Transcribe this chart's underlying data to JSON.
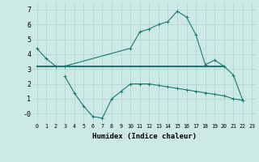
{
  "xlabel": "Humidex (Indice chaleur)",
  "upper_x": [
    0,
    1,
    2,
    3,
    10,
    11,
    12,
    13,
    14,
    15,
    16,
    17,
    18,
    19,
    20,
    21,
    22
  ],
  "upper_y": [
    4.4,
    3.7,
    3.2,
    3.2,
    4.4,
    5.5,
    5.7,
    6.0,
    6.2,
    6.9,
    6.5,
    5.3,
    3.3,
    3.6,
    3.2,
    2.6,
    0.9
  ],
  "lower_x": [
    3,
    4,
    5,
    6,
    7,
    8,
    9,
    10,
    11,
    12,
    13,
    14,
    15,
    16,
    17,
    18,
    19,
    20,
    21,
    22
  ],
  "lower_y": [
    2.5,
    1.4,
    0.5,
    -0.2,
    -0.3,
    1.0,
    1.5,
    2.0,
    2.0,
    2.0,
    1.9,
    1.8,
    1.7,
    1.6,
    1.5,
    1.4,
    1.3,
    1.2,
    1.0,
    0.9
  ],
  "flat_x": [
    0,
    1,
    2,
    3,
    4,
    5,
    6,
    7,
    8,
    9,
    10,
    11,
    12,
    13,
    14,
    15,
    16,
    17,
    18,
    19,
    20
  ],
  "flat_y": [
    3.2,
    3.2,
    3.2,
    3.2,
    3.2,
    3.2,
    3.2,
    3.2,
    3.2,
    3.2,
    3.2,
    3.2,
    3.2,
    3.2,
    3.2,
    3.2,
    3.2,
    3.2,
    3.2,
    3.2,
    3.2
  ],
  "ylim": [
    -0.6,
    7.5
  ],
  "xlim": [
    -0.5,
    23.5
  ],
  "yticks": [
    0,
    1,
    2,
    3,
    4,
    5,
    6,
    7
  ],
  "ytick_labels": [
    "-0",
    "1",
    "2",
    "3",
    "4",
    "5",
    "6",
    "7"
  ],
  "xticks": [
    0,
    1,
    2,
    3,
    4,
    5,
    6,
    7,
    8,
    9,
    10,
    11,
    12,
    13,
    14,
    15,
    16,
    17,
    18,
    19,
    20,
    21,
    22,
    23
  ],
  "line_color": "#1a7a6e",
  "bg_color": "#cce9e5",
  "grid_color": "#aad4d0",
  "font_color": "#000000"
}
